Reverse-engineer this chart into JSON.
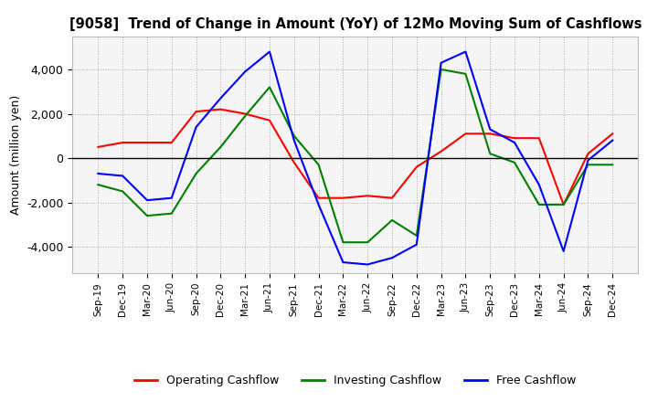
{
  "title": "[9058]  Trend of Change in Amount (YoY) of 12Mo Moving Sum of Cashflows",
  "ylabel": "Amount (million yen)",
  "ylim": [
    -5200,
    5500
  ],
  "yticks": [
    -4000,
    -2000,
    0,
    2000,
    4000
  ],
  "labels": [
    "Sep-19",
    "Dec-19",
    "Mar-20",
    "Jun-20",
    "Sep-20",
    "Dec-20",
    "Mar-21",
    "Jun-21",
    "Sep-21",
    "Dec-21",
    "Mar-22",
    "Jun-22",
    "Sep-22",
    "Dec-22",
    "Mar-23",
    "Jun-23",
    "Sep-23",
    "Dec-23",
    "Mar-24",
    "Jun-24",
    "Sep-24",
    "Dec-24"
  ],
  "operating": [
    500,
    700,
    700,
    700,
    2100,
    2200,
    2000,
    1700,
    -200,
    -1800,
    -1800,
    -1700,
    -1800,
    -400,
    300,
    1100,
    1100,
    900,
    900,
    -2100,
    200,
    1100
  ],
  "investing": [
    -1200,
    -1500,
    -2600,
    -2500,
    -700,
    500,
    1900,
    3200,
    1000,
    -300,
    -3800,
    -3800,
    -2800,
    -3500,
    4000,
    3800,
    200,
    -200,
    -2100,
    -2100,
    -300,
    -300
  ],
  "free": [
    -700,
    -800,
    -1900,
    -1800,
    1400,
    2700,
    3900,
    4800,
    800,
    -2100,
    -4700,
    -4800,
    -4500,
    -3900,
    4300,
    4800,
    1300,
    700,
    -1200,
    -4200,
    -100,
    800
  ],
  "colors": {
    "operating": "#ff0000",
    "investing": "#008000",
    "free": "#0000ff"
  },
  "legend_labels": [
    "Operating Cashflow",
    "Investing Cashflow",
    "Free Cashflow"
  ],
  "background": "#ffffff",
  "plot_bg": "#f5f5f5",
  "grid_color": "#aaaaaa"
}
